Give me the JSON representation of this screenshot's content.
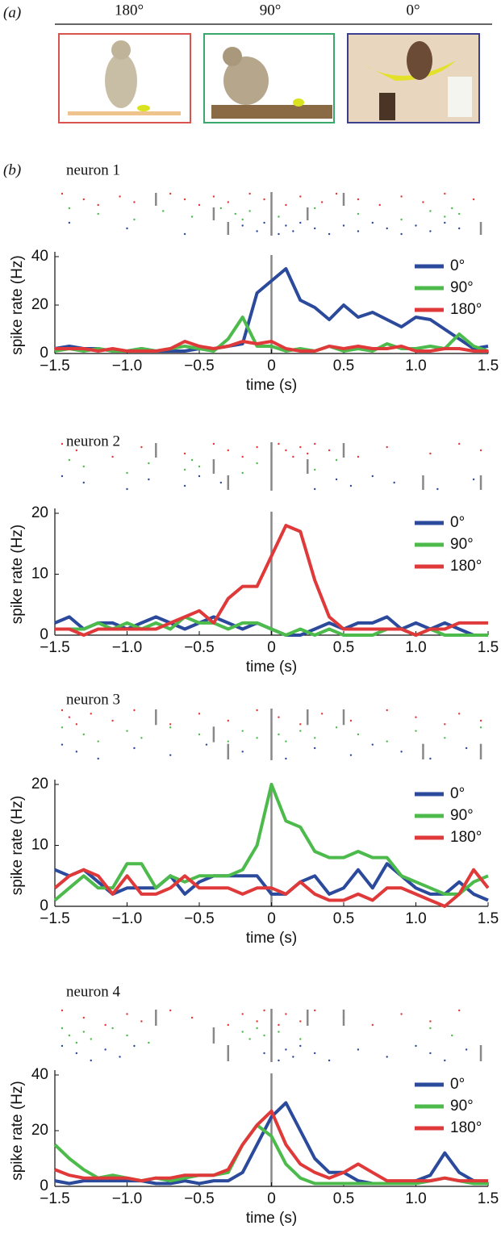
{
  "panel_a": {
    "label": "(a)",
    "headers": [
      "180°",
      "90°",
      "0°"
    ]
  },
  "panel_b_label": "(b)",
  "chart_data": [
    {
      "type": "line",
      "title": "neuron 1",
      "ylabel": "spike rate (Hz)",
      "xlabel": "time (s)",
      "xlim": [
        -1.5,
        1.5
      ],
      "ylim": [
        0,
        40
      ],
      "yticks": [
        0,
        20,
        40
      ],
      "xticks": [
        {
          "value": -1.5,
          "label": "−1.5"
        },
        {
          "value": -1,
          "label": "−1.0"
        },
        {
          "value": -0.5,
          "label": "−0.5"
        },
        0,
        0.5,
        {
          "value": 1,
          "label": "1.0"
        },
        1.5
      ],
      "vline": 0,
      "x": [
        -1.5,
        -1.4,
        -1.3,
        -1.2,
        -1.1,
        -1.0,
        -0.9,
        -0.8,
        -0.7,
        -0.6,
        -0.5,
        -0.4,
        -0.3,
        -0.2,
        -0.1,
        0,
        0.1,
        0.2,
        0.3,
        0.4,
        0.5,
        0.6,
        0.7,
        0.8,
        0.9,
        1.0,
        1.1,
        1.2,
        1.3,
        1.4,
        1.5
      ],
      "series": [
        {
          "name": "0°",
          "color": "#2b4a9c",
          "values": [
            2,
            3,
            2,
            2,
            1,
            1,
            2,
            1,
            1,
            1,
            2,
            2,
            3,
            4,
            25,
            30,
            35,
            22,
            19,
            14,
            20,
            15,
            17,
            14,
            11,
            15,
            14,
            10,
            6,
            2,
            3
          ]
        },
        {
          "name": "90°",
          "color": "#4cbb4c",
          "values": [
            1,
            2,
            1,
            2,
            1,
            1,
            2,
            1,
            2,
            3,
            2,
            1,
            6,
            15,
            3,
            3,
            1,
            2,
            1,
            3,
            1,
            2,
            1,
            4,
            2,
            2,
            3,
            2,
            8,
            3,
            1
          ]
        },
        {
          "name": "180°",
          "color": "#e0393a",
          "values": [
            2,
            2,
            2,
            1,
            2,
            1,
            1,
            1,
            2,
            5,
            3,
            2,
            3,
            5,
            4,
            5,
            2,
            1,
            1,
            3,
            2,
            3,
            2,
            2,
            3,
            1,
            1,
            2,
            2,
            1,
            1
          ]
        }
      ],
      "raster": [
        {
          "color": "#e0393a",
          "spikes": [
            -1.45,
            -1.3,
            -1.2,
            -1.05,
            -0.95,
            -0.7,
            -0.6,
            -0.5,
            -0.4,
            -0.3,
            -0.15,
            -0.05,
            0.1,
            0.2,
            0.35,
            0.45,
            0.6,
            0.75,
            0.9,
            1.05,
            1.2,
            1.4
          ],
          "markers": [
            -0.8,
            0.5
          ]
        },
        {
          "color": "#4cbb4c",
          "spikes": [
            -1.4,
            -1.2,
            -0.95,
            -0.75,
            -0.55,
            -0.35,
            -0.25,
            -0.2,
            -0.15,
            0.05,
            0.3,
            0.6,
            0.9,
            1.1,
            1.2,
            1.25,
            1.3
          ],
          "markers": [
            -0.4,
            0.25
          ]
        },
        {
          "color": "#2b4a9c",
          "spikes": [
            -1.4,
            -1.0,
            -0.6,
            -0.2,
            -0.1,
            -0.05,
            0,
            0.05,
            0.1,
            0.15,
            0.2,
            0.3,
            0.4,
            0.5,
            0.6,
            0.7,
            0.8,
            0.9,
            1.0,
            1.1,
            1.2,
            1.3
          ],
          "markers": [
            -0.3,
            1.45
          ]
        }
      ]
    },
    {
      "type": "line",
      "title": "neuron 2",
      "ylabel": "spike rate (Hz)",
      "xlabel": "time (s)",
      "xlim": [
        -1.5,
        1.5
      ],
      "ylim": [
        0,
        20
      ],
      "yticks": [
        0,
        10,
        20
      ],
      "xticks": [
        {
          "value": -1.5,
          "label": "−1.5"
        },
        {
          "value": -1,
          "label": "−1.0"
        },
        {
          "value": -0.5,
          "label": "−0.5"
        },
        0,
        0.5,
        {
          "value": 1,
          "label": "1.0"
        },
        1.5
      ],
      "vline": 0,
      "x": [
        -1.5,
        -1.4,
        -1.3,
        -1.2,
        -1.1,
        -1.0,
        -0.9,
        -0.8,
        -0.7,
        -0.6,
        -0.5,
        -0.4,
        -0.3,
        -0.2,
        -0.1,
        0,
        0.1,
        0.2,
        0.3,
        0.4,
        0.5,
        0.6,
        0.7,
        0.8,
        0.9,
        1.0,
        1.1,
        1.2,
        1.3,
        1.4,
        1.5
      ],
      "series": [
        {
          "name": "0°",
          "color": "#2b4a9c",
          "values": [
            2,
            3,
            1,
            2,
            2,
            1,
            2,
            3,
            2,
            1,
            2,
            3,
            2,
            1,
            2,
            1,
            0,
            0,
            1,
            2,
            1,
            2,
            2,
            3,
            1,
            2,
            1,
            2,
            1,
            0,
            0
          ]
        },
        {
          "name": "90°",
          "color": "#4cbb4c",
          "values": [
            1,
            1,
            1,
            2,
            1,
            2,
            1,
            2,
            1,
            3,
            2,
            2,
            1,
            2,
            2,
            1,
            0,
            1,
            0,
            1,
            0,
            0,
            0,
            1,
            1,
            0,
            1,
            0,
            0,
            0,
            0
          ]
        },
        {
          "name": "180°",
          "color": "#e0393a",
          "values": [
            1,
            1,
            0,
            1,
            1,
            1,
            1,
            1,
            2,
            3,
            4,
            2,
            6,
            8,
            8,
            13,
            18,
            17,
            9,
            3,
            1,
            1,
            1,
            1,
            1,
            0,
            1,
            1,
            2,
            2,
            2
          ]
        }
      ],
      "raster": [
        {
          "color": "#e0393a",
          "spikes": [
            -1.45,
            -1.35,
            -1.1,
            -0.9,
            -0.6,
            -0.4,
            -0.3,
            -0.2,
            -0.1,
            0,
            0.05,
            0.1,
            0.15,
            0.2,
            0.25,
            0.3,
            0.4,
            0.6,
            0.8,
            1.1,
            1.3,
            1.45
          ],
          "markers": [
            -0.8,
            0.5
          ]
        },
        {
          "color": "#4cbb4c",
          "spikes": [
            -1.4,
            -1.3,
            -1.0,
            -0.85,
            -0.6,
            -0.55,
            -0.5,
            -0.2,
            -0.1,
            0.3,
            0.45
          ],
          "markers": [
            -0.4,
            0.25
          ]
        },
        {
          "color": "#2b4a9c",
          "spikes": [
            -1.45,
            -1.3,
            -1.0,
            -0.85,
            -0.6,
            -0.5,
            -0.35,
            0.3,
            0.45,
            0.55,
            0.7,
            0.85,
            1.15,
            1.4
          ],
          "markers": [
            -0.3,
            1.05,
            1.45
          ]
        }
      ]
    },
    {
      "type": "line",
      "title": "neuron 3",
      "ylabel": "spike rate (Hz)",
      "xlabel": "time (s)",
      "xlim": [
        -1.5,
        1.5
      ],
      "ylim": [
        0,
        20
      ],
      "yticks": [
        0,
        10,
        20
      ],
      "xticks": [
        {
          "value": -1.5,
          "label": "−1.5"
        },
        {
          "value": -1,
          "label": "−1.0"
        },
        {
          "value": -0.5,
          "label": "−0.5"
        },
        0,
        0.5,
        {
          "value": 1,
          "label": "1.0"
        },
        1.5
      ],
      "vline": 0,
      "x": [
        -1.5,
        -1.4,
        -1.3,
        -1.2,
        -1.1,
        -1.0,
        -0.9,
        -0.8,
        -0.7,
        -0.6,
        -0.5,
        -0.4,
        -0.3,
        -0.2,
        -0.1,
        0,
        0.1,
        0.2,
        0.3,
        0.4,
        0.5,
        0.6,
        0.7,
        0.8,
        0.9,
        1.0,
        1.1,
        1.2,
        1.3,
        1.4,
        1.5
      ],
      "series": [
        {
          "name": "0°",
          "color": "#2b4a9c",
          "values": [
            6,
            5,
            6,
            4,
            2,
            3,
            3,
            3,
            5,
            2,
            4,
            5,
            5,
            5,
            5,
            2,
            2,
            4,
            5,
            2,
            3,
            6,
            3,
            7,
            5,
            3,
            2,
            2,
            4,
            2,
            1
          ]
        },
        {
          "name": "90°",
          "color": "#4cbb4c",
          "values": [
            1,
            3,
            5,
            3,
            3,
            7,
            7,
            3,
            5,
            4,
            5,
            5,
            5,
            6,
            10,
            20,
            14,
            13,
            9,
            8,
            8,
            9,
            8,
            8,
            5,
            4,
            3,
            2,
            2,
            4,
            5
          ]
        },
        {
          "name": "180°",
          "color": "#e0393a",
          "values": [
            3,
            5,
            6,
            5,
            2,
            5,
            2,
            2,
            3,
            5,
            3,
            3,
            3,
            2,
            3,
            3,
            2,
            4,
            2,
            1,
            1,
            2,
            1,
            3,
            3,
            2,
            1,
            0,
            2,
            6,
            3
          ]
        }
      ],
      "raster": [
        {
          "color": "#e0393a",
          "spikes": [
            -1.45,
            -1.4,
            -1.35,
            -1.25,
            -1.1,
            -0.95,
            -0.8,
            -0.7,
            -0.5,
            -0.3,
            -0.1,
            0.05,
            0.2,
            0.35,
            0.55,
            0.8,
            1.0,
            1.2,
            1.3,
            1.45
          ],
          "markers": [
            -0.8,
            0.25,
            0.5
          ]
        },
        {
          "color": "#4cbb4c",
          "spikes": [
            -1.45,
            -1.3,
            -1.2,
            -1.0,
            -0.9,
            -0.7,
            -0.5,
            -0.3,
            -0.2,
            -0.1,
            0,
            0.05,
            0.1,
            0.2,
            0.3,
            0.45,
            0.6,
            0.8,
            1.0,
            1.2,
            1.45
          ],
          "markers": [
            -0.4
          ]
        },
        {
          "color": "#2b4a9c",
          "spikes": [
            -1.45,
            -1.35,
            -1.2,
            -0.95,
            -0.7,
            -0.45,
            -0.2,
            0.1,
            0.3,
            0.55,
            0.7,
            0.9,
            1.1,
            1.35
          ],
          "markers": [
            -0.3,
            1.05,
            1.45
          ]
        }
      ]
    },
    {
      "type": "line",
      "title": "neuron 4",
      "ylabel": "spike rate (Hz)",
      "xlabel": "time (s)",
      "xlim": [
        -1.5,
        1.5
      ],
      "ylim": [
        0,
        40
      ],
      "yticks": [
        0,
        20,
        40
      ],
      "xticks": [
        {
          "value": -1.5,
          "label": "−1.5"
        },
        {
          "value": -1,
          "label": "−1.0"
        },
        {
          "value": -0.5,
          "label": "−0.5"
        },
        0,
        0.5,
        {
          "value": 1,
          "label": "1.0"
        },
        1.5
      ],
      "vline": 0,
      "x": [
        -1.5,
        -1.4,
        -1.3,
        -1.2,
        -1.1,
        -1.0,
        -0.9,
        -0.8,
        -0.7,
        -0.6,
        -0.5,
        -0.4,
        -0.3,
        -0.2,
        -0.1,
        0,
        0.1,
        0.2,
        0.3,
        0.4,
        0.5,
        0.6,
        0.7,
        0.8,
        0.9,
        1.0,
        1.1,
        1.2,
        1.3,
        1.4,
        1.5
      ],
      "series": [
        {
          "name": "0°",
          "color": "#2b4a9c",
          "values": [
            2,
            1,
            2,
            2,
            2,
            2,
            2,
            1,
            1,
            2,
            1,
            2,
            2,
            5,
            15,
            25,
            30,
            20,
            10,
            5,
            5,
            2,
            1,
            1,
            1,
            2,
            4,
            12,
            5,
            2,
            1
          ]
        },
        {
          "name": "90°",
          "color": "#4cbb4c",
          "values": [
            15,
            10,
            6,
            3,
            4,
            3,
            2,
            3,
            2,
            3,
            4,
            4,
            5,
            15,
            22,
            18,
            8,
            3,
            1,
            1,
            1,
            1,
            1,
            1,
            1,
            1,
            2,
            3,
            2,
            1,
            1
          ]
        },
        {
          "name": "180°",
          "color": "#e0393a",
          "values": [
            6,
            4,
            3,
            3,
            3,
            3,
            2,
            3,
            3,
            4,
            4,
            4,
            6,
            15,
            22,
            27,
            15,
            8,
            5,
            3,
            5,
            8,
            5,
            2,
            2,
            2,
            2,
            3,
            2,
            2,
            2
          ]
        }
      ],
      "raster": [
        {
          "color": "#e0393a",
          "spikes": [
            -1.45,
            -1.3,
            -1.15,
            -1.0,
            -0.9,
            -0.7,
            -0.55,
            -0.3,
            -0.2,
            -0.1,
            -0.05,
            0,
            0.05,
            0.1,
            0.2,
            0.3,
            0.5,
            0.7,
            0.9,
            1.1,
            1.3
          ],
          "markers": [
            -0.8,
            0.25,
            0.5
          ]
        },
        {
          "color": "#4cbb4c",
          "spikes": [
            -1.45,
            -1.4,
            -1.35,
            -1.3,
            -1.25,
            -1.1,
            -1.0,
            -0.85,
            -0.2,
            -0.15,
            -0.1,
            -0.05,
            0,
            0.05,
            0.2,
            1.1,
            1.25
          ],
          "markers": [
            -0.4
          ]
        },
        {
          "color": "#2b4a9c",
          "spikes": [
            -1.45,
            -1.35,
            -1.25,
            -1.15,
            -1.05,
            -0.95,
            -0.05,
            0.05,
            0.1,
            0.15,
            0.2,
            0.3,
            0.4,
            0.6,
            0.8,
            1.0,
            1.1,
            1.2,
            1.35
          ],
          "markers": [
            -0.3,
            1.45
          ]
        }
      ]
    }
  ]
}
